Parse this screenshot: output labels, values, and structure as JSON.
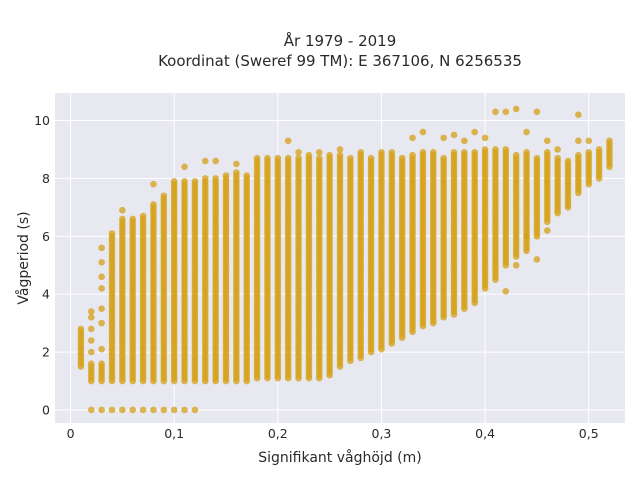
{
  "chart_data": {
    "type": "scatter",
    "title": "År 1979 - 2019",
    "subtitle": "Koordinat (Sweref 99 TM): E 367106, N 6256535",
    "xlabel": "Signifikant våghöjd (m)",
    "ylabel": "Vågperiod (s)",
    "xlim": [
      -0.015,
      0.535
    ],
    "ylim": [
      -0.45,
      10.95
    ],
    "x_ticks": [
      0,
      0.1,
      0.2,
      0.3,
      0.4,
      0.5
    ],
    "x_tick_labels": [
      "0",
      "0,1",
      "0,2",
      "0,3",
      "0,4",
      "0,5"
    ],
    "y_ticks": [
      0,
      2,
      4,
      6,
      8,
      10
    ],
    "y_tick_labels": [
      "0",
      "2",
      "4",
      "6",
      "8",
      "10"
    ],
    "grid": true,
    "legend": "none",
    "marker_color": "#D4A017",
    "plot_background": "#E8E8F0",
    "x_step": 0.01,
    "columns": [
      {
        "x": 0.01,
        "ymin": 1.5,
        "ymax": 2.8,
        "extra": []
      },
      {
        "x": 0.02,
        "ymin": 1.0,
        "ymax": 1.6,
        "extra": [
          0,
          2.0,
          2.4,
          2.8,
          3.2,
          3.4
        ]
      },
      {
        "x": 0.03,
        "ymin": 1.0,
        "ymax": 1.6,
        "extra": [
          0,
          2.1,
          3.0,
          3.5,
          4.2,
          4.6,
          5.1,
          5.6
        ]
      },
      {
        "x": 0.04,
        "ymin": 1.0,
        "ymax": 6.1,
        "extra": [
          0
        ]
      },
      {
        "x": 0.05,
        "ymin": 1.0,
        "ymax": 6.6,
        "extra": [
          0,
          6.9
        ]
      },
      {
        "x": 0.06,
        "ymin": 1.0,
        "ymax": 6.6,
        "extra": [
          0
        ]
      },
      {
        "x": 0.07,
        "ymin": 1.0,
        "ymax": 6.7,
        "extra": [
          0
        ]
      },
      {
        "x": 0.08,
        "ymin": 1.0,
        "ymax": 7.1,
        "extra": [
          0,
          7.8
        ]
      },
      {
        "x": 0.09,
        "ymin": 1.0,
        "ymax": 7.4,
        "extra": [
          0
        ]
      },
      {
        "x": 0.1,
        "ymin": 1.0,
        "ymax": 7.9,
        "extra": [
          0
        ]
      },
      {
        "x": 0.11,
        "ymin": 1.0,
        "ymax": 7.9,
        "extra": [
          0,
          8.4
        ]
      },
      {
        "x": 0.12,
        "ymin": 1.0,
        "ymax": 7.9,
        "extra": [
          0
        ]
      },
      {
        "x": 0.13,
        "ymin": 1.0,
        "ymax": 8.0,
        "extra": [
          8.6
        ]
      },
      {
        "x": 0.14,
        "ymin": 1.0,
        "ymax": 8.0,
        "extra": [
          8.6
        ]
      },
      {
        "x": 0.15,
        "ymin": 1.0,
        "ymax": 8.1,
        "extra": []
      },
      {
        "x": 0.16,
        "ymin": 1.0,
        "ymax": 8.2,
        "extra": [
          8.5
        ]
      },
      {
        "x": 0.17,
        "ymin": 1.0,
        "ymax": 8.1,
        "extra": []
      },
      {
        "x": 0.18,
        "ymin": 1.1,
        "ymax": 8.7,
        "extra": []
      },
      {
        "x": 0.19,
        "ymin": 1.1,
        "ymax": 8.7,
        "extra": []
      },
      {
        "x": 0.2,
        "ymin": 1.1,
        "ymax": 8.7,
        "extra": []
      },
      {
        "x": 0.21,
        "ymin": 1.1,
        "ymax": 8.7,
        "extra": [
          9.3
        ]
      },
      {
        "x": 0.22,
        "ymin": 1.1,
        "ymax": 8.7,
        "extra": [
          8.9
        ]
      },
      {
        "x": 0.23,
        "ymin": 1.1,
        "ymax": 8.8,
        "extra": []
      },
      {
        "x": 0.24,
        "ymin": 1.1,
        "ymax": 8.7,
        "extra": [
          8.9
        ]
      },
      {
        "x": 0.25,
        "ymin": 1.2,
        "ymax": 8.8,
        "extra": []
      },
      {
        "x": 0.26,
        "ymin": 1.5,
        "ymax": 8.8,
        "extra": [
          9.0
        ]
      },
      {
        "x": 0.27,
        "ymin": 1.7,
        "ymax": 8.7,
        "extra": []
      },
      {
        "x": 0.28,
        "ymin": 1.8,
        "ymax": 8.9,
        "extra": []
      },
      {
        "x": 0.29,
        "ymin": 2.0,
        "ymax": 8.7,
        "extra": []
      },
      {
        "x": 0.3,
        "ymin": 2.1,
        "ymax": 8.9,
        "extra": []
      },
      {
        "x": 0.31,
        "ymin": 2.3,
        "ymax": 8.9,
        "extra": []
      },
      {
        "x": 0.32,
        "ymin": 2.5,
        "ymax": 8.7,
        "extra": []
      },
      {
        "x": 0.33,
        "ymin": 2.7,
        "ymax": 8.8,
        "extra": [
          9.4
        ]
      },
      {
        "x": 0.34,
        "ymin": 2.9,
        "ymax": 8.9,
        "extra": [
          9.6
        ]
      },
      {
        "x": 0.35,
        "ymin": 3.0,
        "ymax": 8.9,
        "extra": []
      },
      {
        "x": 0.36,
        "ymin": 3.2,
        "ymax": 8.7,
        "extra": [
          9.4
        ]
      },
      {
        "x": 0.37,
        "ymin": 3.3,
        "ymax": 8.9,
        "extra": [
          9.5
        ]
      },
      {
        "x": 0.38,
        "ymin": 3.5,
        "ymax": 8.9,
        "extra": [
          9.3
        ]
      },
      {
        "x": 0.39,
        "ymin": 3.7,
        "ymax": 8.9,
        "extra": [
          9.6
        ]
      },
      {
        "x": 0.4,
        "ymin": 4.2,
        "ymax": 9.0,
        "extra": [
          9.4
        ]
      },
      {
        "x": 0.41,
        "ymin": 4.5,
        "ymax": 9.0,
        "extra": [
          10.3
        ]
      },
      {
        "x": 0.42,
        "ymin": 5.0,
        "ymax": 9.0,
        "extra": [
          10.3,
          4.1
        ]
      },
      {
        "x": 0.43,
        "ymin": 5.3,
        "ymax": 8.8,
        "extra": [
          10.4,
          5.0
        ]
      },
      {
        "x": 0.44,
        "ymin": 5.6,
        "ymax": 8.9,
        "extra": [
          9.6,
          6.0,
          5.5
        ]
      },
      {
        "x": 0.45,
        "ymin": 6.0,
        "ymax": 8.7,
        "extra": [
          10.3,
          5.2
        ]
      },
      {
        "x": 0.46,
        "ymin": 6.5,
        "ymax": 8.9,
        "extra": [
          9.3,
          6.2
        ]
      },
      {
        "x": 0.47,
        "ymin": 6.8,
        "ymax": 8.7,
        "extra": [
          9.0
        ]
      },
      {
        "x": 0.48,
        "ymin": 7.0,
        "ymax": 8.6,
        "extra": []
      },
      {
        "x": 0.49,
        "ymin": 7.5,
        "ymax": 8.8,
        "extra": [
          9.3,
          10.2
        ]
      },
      {
        "x": 0.5,
        "ymin": 7.8,
        "ymax": 8.9,
        "extra": [
          9.3
        ]
      },
      {
        "x": 0.51,
        "ymin": 8.0,
        "ymax": 9.0,
        "extra": []
      },
      {
        "x": 0.52,
        "ymin": 8.4,
        "ymax": 9.3,
        "extra": []
      }
    ]
  }
}
